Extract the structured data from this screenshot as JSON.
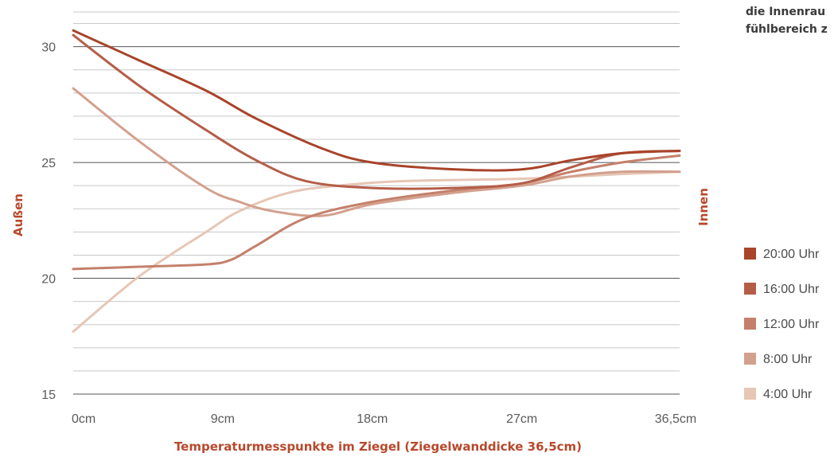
{
  "note": {
    "line1": "die Innenrau",
    "line2": "fühlbereich z"
  },
  "chart_data": {
    "type": "line",
    "xlabel": "Temperaturmesspunkte im Ziegel (Ziegelwanddicke 36,5cm)",
    "ylabel_left": "Außen",
    "ylabel_right": "Innen",
    "ylim": [
      15,
      31.5
    ],
    "xlim": [
      0,
      36.5
    ],
    "grid": true,
    "legend_position": "right",
    "yticks": [
      15,
      20,
      25,
      30
    ],
    "ytick_labels": [
      "15",
      "20",
      "25",
      "30"
    ],
    "xticks": [
      0,
      9,
      18,
      27,
      36.5
    ],
    "xtick_labels": [
      "0cm",
      "9cm",
      "18cm",
      "27cm",
      "36,5cm"
    ],
    "series": [
      {
        "name": "20:00 Uhr",
        "color": "#a8442a",
        "x": [
          0,
          4,
          8,
          11,
          15,
          18,
          23,
          27,
          30,
          33,
          36.5
        ],
        "y": [
          30.7,
          29.4,
          28.1,
          26.9,
          25.6,
          25.0,
          24.7,
          24.7,
          25.1,
          25.4,
          25.5
        ]
      },
      {
        "name": "16:00 Uhr",
        "color": "#b45e48",
        "x": [
          0,
          4,
          8,
          11,
          14,
          18,
          23,
          27,
          30,
          33,
          36.5
        ],
        "y": [
          30.5,
          28.3,
          26.4,
          25.1,
          24.2,
          23.9,
          23.9,
          24.1,
          24.8,
          25.4,
          25.5
        ]
      },
      {
        "name": "12:00 Uhr",
        "color": "#c4806a",
        "x": [
          0,
          4,
          8,
          9.5,
          11,
          14,
          18,
          23,
          27,
          30,
          33,
          36.5
        ],
        "y": [
          20.4,
          20.5,
          20.6,
          20.8,
          21.4,
          22.6,
          23.3,
          23.8,
          24.1,
          24.6,
          25.0,
          25.3
        ]
      },
      {
        "name": "8:00 Uhr",
        "color": "#d3a08e",
        "x": [
          0,
          4,
          8,
          10,
          12,
          15,
          18,
          23,
          27,
          30,
          33,
          36.5
        ],
        "y": [
          28.2,
          25.9,
          23.9,
          23.3,
          22.9,
          22.7,
          23.2,
          23.7,
          24.0,
          24.4,
          24.6,
          24.6
        ]
      },
      {
        "name": "4:00 Uhr",
        "color": "#e6c6b5",
        "x": [
          0,
          4,
          8,
          10,
          13,
          16,
          20,
          27,
          33,
          36.5
        ],
        "y": [
          17.7,
          20.1,
          22.0,
          22.9,
          23.7,
          24.0,
          24.2,
          24.3,
          24.5,
          24.6
        ]
      }
    ]
  }
}
